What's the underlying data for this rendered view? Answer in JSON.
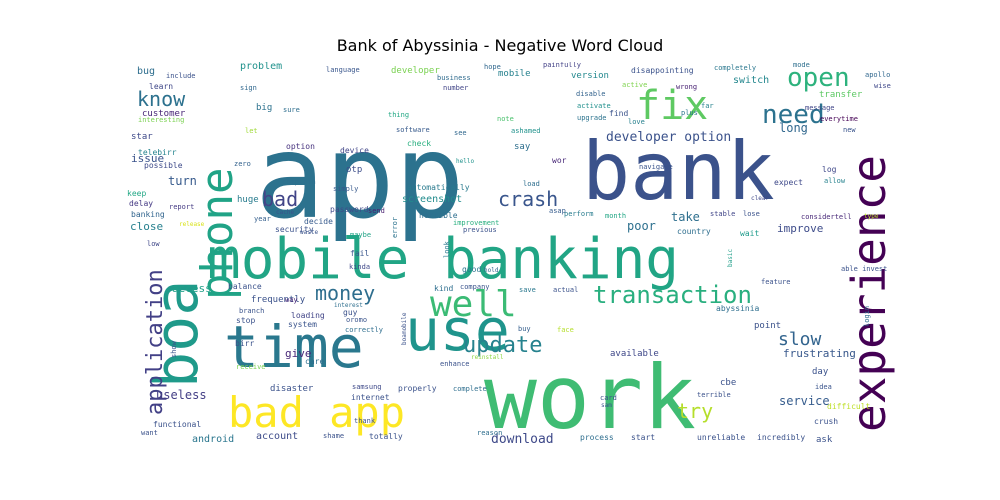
{
  "chart_data": {
    "type": "wordcloud",
    "title": "Bank of Abyssinia - Negative Word Cloud",
    "background": "#ffffff",
    "colormap": "viridis",
    "words": [
      {
        "text": "app",
        "size": 116,
        "color": "#2c728e"
      },
      {
        "text": "work",
        "size": 88,
        "color": "#3fbc73"
      },
      {
        "text": "bank",
        "size": 80,
        "color": "#3b528b"
      },
      {
        "text": "mobile banking",
        "size": 56,
        "color": "#21a585"
      },
      {
        "text": "time",
        "size": 58,
        "color": "#2a788e"
      },
      {
        "text": "use",
        "size": 58,
        "color": "#1f948c"
      },
      {
        "text": "boa",
        "size": 60,
        "color": "#1f9a8a"
      },
      {
        "text": "experience",
        "size": 46,
        "color": "#440154"
      },
      {
        "text": "phone",
        "size": 44,
        "color": "#20a386"
      },
      {
        "text": "bad app",
        "size": 42,
        "color": "#fde725"
      },
      {
        "text": "fix",
        "size": 40,
        "color": "#5ec962"
      },
      {
        "text": "well",
        "size": 36,
        "color": "#3bbb75"
      },
      {
        "text": "application",
        "size": 22,
        "color": "#424086"
      },
      {
        "text": "open",
        "size": 26,
        "color": "#2db27d"
      },
      {
        "text": "need",
        "size": 26,
        "color": "#2c728e"
      },
      {
        "text": "transaction",
        "size": 24,
        "color": "#29af7f"
      },
      {
        "text": "update",
        "size": 22,
        "color": "#26828e"
      },
      {
        "text": "money",
        "size": 20,
        "color": "#2e6e8e"
      },
      {
        "text": "crash",
        "size": 20,
        "color": "#39558c"
      },
      {
        "text": "know",
        "size": 20,
        "color": "#2c718e"
      },
      {
        "text": "bad",
        "size": 20,
        "color": "#414487"
      },
      {
        "text": "slow",
        "size": 18,
        "color": "#32648e"
      },
      {
        "text": "try",
        "size": 20,
        "color": "#b5de2b"
      },
      {
        "text": "developer option",
        "size": 13,
        "color": "#3b528b"
      },
      {
        "text": "download",
        "size": 13,
        "color": "#3e4989"
      },
      {
        "text": "service",
        "size": 12,
        "color": "#365c8d"
      },
      {
        "text": "useless",
        "size": 12,
        "color": "#433e85"
      },
      {
        "text": "long",
        "size": 12,
        "color": "#31688e"
      },
      {
        "text": "take",
        "size": 12,
        "color": "#2e6f8e"
      },
      {
        "text": "poor",
        "size": 12,
        "color": "#2d708e"
      },
      {
        "text": "turn",
        "size": 12,
        "color": "#375a8c"
      },
      {
        "text": "close",
        "size": 11,
        "color": "#27808e"
      },
      {
        "text": "issue",
        "size": 11,
        "color": "#3a538b"
      },
      {
        "text": "access",
        "size": 11,
        "color": "#1fa088"
      },
      {
        "text": "give",
        "size": 11,
        "color": "#482878"
      },
      {
        "text": "account",
        "size": 10,
        "color": "#3e4c8a"
      },
      {
        "text": "android",
        "size": 10,
        "color": "#2a768e"
      },
      {
        "text": "improve",
        "size": 11,
        "color": "#3e4c8a"
      },
      {
        "text": "frustrating",
        "size": 11,
        "color": "#38588c"
      },
      {
        "text": "screenshot",
        "size": 10,
        "color": "#228c8d"
      },
      {
        "text": "problem",
        "size": 10,
        "color": "#20928c"
      },
      {
        "text": "bug",
        "size": 10,
        "color": "#2e6e8e"
      },
      {
        "text": "developer",
        "size": 9,
        "color": "#7ad151"
      },
      {
        "text": "version",
        "size": 9,
        "color": "#23888e"
      },
      {
        "text": "switch",
        "size": 10,
        "color": "#24878e"
      },
      {
        "text": "transfer",
        "size": 9,
        "color": "#5cc863"
      },
      {
        "text": "mobile",
        "size": 9,
        "color": "#26818e"
      },
      {
        "text": "customer",
        "size": 9,
        "color": "#482677"
      },
      {
        "text": "learn",
        "size": 8,
        "color": "#3f4788"
      },
      {
        "text": "include",
        "size": 7,
        "color": "#3b528b"
      },
      {
        "text": "language",
        "size": 7,
        "color": "#39568c"
      },
      {
        "text": "business",
        "size": 7,
        "color": "#2f6b8e"
      },
      {
        "text": "number",
        "size": 7,
        "color": "#414487"
      },
      {
        "text": "hope",
        "size": 7,
        "color": "#31688e"
      },
      {
        "text": "painfully",
        "size": 7,
        "color": "#424186"
      },
      {
        "text": "disappointing",
        "size": 8,
        "color": "#3b528b"
      },
      {
        "text": "completely",
        "size": 7,
        "color": "#2a778e"
      },
      {
        "text": "mode",
        "size": 7,
        "color": "#2e6f8e"
      },
      {
        "text": "apollo",
        "size": 7,
        "color": "#31678e"
      },
      {
        "text": "wise",
        "size": 7,
        "color": "#3f4889"
      },
      {
        "text": "message",
        "size": 7,
        "color": "#404688"
      },
      {
        "text": "everytime",
        "size": 7,
        "color": "#440154"
      },
      {
        "text": "new",
        "size": 7,
        "color": "#3a548c"
      },
      {
        "text": "interesting",
        "size": 7,
        "color": "#7ad151"
      },
      {
        "text": "sign",
        "size": 7,
        "color": "#31688e"
      },
      {
        "text": "big",
        "size": 9,
        "color": "#2c728e"
      },
      {
        "text": "sure",
        "size": 7,
        "color": "#2e6e8e"
      },
      {
        "text": "thing",
        "size": 7,
        "color": "#22a884"
      },
      {
        "text": "star",
        "size": 9,
        "color": "#3e4989"
      },
      {
        "text": "let",
        "size": 7,
        "color": "#a0da39"
      },
      {
        "text": "option",
        "size": 8,
        "color": "#46327e"
      },
      {
        "text": "device",
        "size": 8,
        "color": "#404588"
      },
      {
        "text": "check",
        "size": 8,
        "color": "#29af7f"
      },
      {
        "text": "software",
        "size": 7,
        "color": "#375a8c"
      },
      {
        "text": "see",
        "size": 7,
        "color": "#31688e"
      },
      {
        "text": "note",
        "size": 7,
        "color": "#4ac16d"
      },
      {
        "text": "say",
        "size": 9,
        "color": "#2e6f8e"
      },
      {
        "text": "ashamed",
        "size": 7,
        "color": "#20928c"
      },
      {
        "text": "upgrade",
        "size": 7,
        "color": "#2c738e"
      },
      {
        "text": "activate",
        "size": 7,
        "color": "#21908d"
      },
      {
        "text": "disable",
        "size": 7,
        "color": "#33638d"
      },
      {
        "text": "active",
        "size": 7,
        "color": "#7fd34e"
      },
      {
        "text": "wrong",
        "size": 7,
        "color": "#482173"
      },
      {
        "text": "find",
        "size": 8,
        "color": "#3a538b"
      },
      {
        "text": "love",
        "size": 7,
        "color": "#27808e"
      },
      {
        "text": "plus",
        "size": 7,
        "color": "#2b748e"
      },
      {
        "text": "far",
        "size": 7,
        "color": "#26828e"
      },
      {
        "text": "navigate",
        "size": 7,
        "color": "#3a548c"
      },
      {
        "text": "telebirr",
        "size": 8,
        "color": "#25848e"
      },
      {
        "text": "possible",
        "size": 8,
        "color": "#3e4a89"
      },
      {
        "text": "zero",
        "size": 7,
        "color": "#33628d"
      },
      {
        "text": "otp",
        "size": 9,
        "color": "#3d4e8a"
      },
      {
        "text": "hello",
        "size": 6,
        "color": "#20928c"
      },
      {
        "text": "wor",
        "size": 8,
        "color": "#482878"
      },
      {
        "text": "load",
        "size": 7,
        "color": "#2e6e8e"
      },
      {
        "text": "expect",
        "size": 8,
        "color": "#3e4989"
      },
      {
        "text": "log",
        "size": 8,
        "color": "#3f4889"
      },
      {
        "text": "allow",
        "size": 7,
        "color": "#26828e"
      },
      {
        "text": "keep",
        "size": 8,
        "color": "#22a785"
      },
      {
        "text": "delay",
        "size": 8,
        "color": "#443983"
      },
      {
        "text": "report",
        "size": 7,
        "color": "#443a83"
      },
      {
        "text": "banking",
        "size": 8,
        "color": "#32658e"
      },
      {
        "text": "complain",
        "size": 7,
        "color": "#2d708e"
      },
      {
        "text": "simply",
        "size": 7,
        "color": "#38598c"
      },
      {
        "text": "automatically",
        "size": 8,
        "color": "#297a8e"
      },
      {
        "text": "huge",
        "size": 9,
        "color": "#287c8e"
      },
      {
        "text": "release",
        "size": 6,
        "color": "#d8e219"
      },
      {
        "text": "cache",
        "size": 6,
        "color": "#3a548c"
      },
      {
        "text": "year",
        "size": 7,
        "color": "#355f8d"
      },
      {
        "text": "decide",
        "size": 8,
        "color": "#375b8d"
      },
      {
        "text": "password",
        "size": 8,
        "color": "#3e4a89"
      },
      {
        "text": "send",
        "size": 7,
        "color": "#481f70"
      },
      {
        "text": "horrible",
        "size": 8,
        "color": "#2e6f8e"
      },
      {
        "text": "asap",
        "size": 7,
        "color": "#365c8d"
      },
      {
        "text": "perform",
        "size": 7,
        "color": "#287c8e"
      },
      {
        "text": "month",
        "size": 7,
        "color": "#22a785"
      },
      {
        "text": "stable",
        "size": 7,
        "color": "#404588"
      },
      {
        "text": "lose",
        "size": 7,
        "color": "#3b528b"
      },
      {
        "text": "clear",
        "size": 6,
        "color": "#3f4889"
      },
      {
        "text": "considertell",
        "size": 7,
        "color": "#482878"
      },
      {
        "text": "type",
        "size": 6,
        "color": "#b8de29"
      },
      {
        "text": "security",
        "size": 8,
        "color": "#3b528b"
      },
      {
        "text": "waste",
        "size": 6,
        "color": "#3a538b"
      },
      {
        "text": "maybe",
        "size": 7,
        "color": "#20a386"
      },
      {
        "text": "error",
        "size": 7,
        "color": "#2c738e"
      },
      {
        "text": "improvement",
        "size": 7,
        "color": "#29af7f"
      },
      {
        "text": "previous",
        "size": 7,
        "color": "#3b528b"
      },
      {
        "text": "country",
        "size": 8,
        "color": "#2e6e8e"
      },
      {
        "text": "wait",
        "size": 8,
        "color": "#1e9b8a"
      },
      {
        "text": "low",
        "size": 7,
        "color": "#3f4788"
      },
      {
        "text": "look",
        "size": 7,
        "color": "#2a788e"
      },
      {
        "text": "fail",
        "size": 8,
        "color": "#39568c"
      },
      {
        "text": "kinda",
        "size": 7,
        "color": "#3f4889"
      },
      {
        "text": "able invest",
        "size": 7,
        "color": "#3b528b"
      },
      {
        "text": "basic",
        "size": 6,
        "color": "#1f9e89"
      },
      {
        "text": "good",
        "size": 8,
        "color": "#2a768e"
      },
      {
        "text": "hold",
        "size": 6,
        "color": "#32658e"
      },
      {
        "text": "balance",
        "size": 8,
        "color": "#3b528b"
      },
      {
        "text": "interest",
        "size": 6,
        "color": "#2e6f8e"
      },
      {
        "text": "company",
        "size": 7,
        "color": "#3a548c"
      },
      {
        "text": "kind",
        "size": 8,
        "color": "#2e6e8e"
      },
      {
        "text": "save",
        "size": 7,
        "color": "#2a788e"
      },
      {
        "text": "actual",
        "size": 7,
        "color": "#3b528b"
      },
      {
        "text": "feature",
        "size": 7,
        "color": "#3b528b"
      },
      {
        "text": "abyssinia",
        "size": 8,
        "color": "#2e6e8e"
      },
      {
        "text": "frequently",
        "size": 9,
        "color": "#3b528b"
      },
      {
        "text": "way",
        "size": 7,
        "color": "#482878"
      },
      {
        "text": "branch",
        "size": 7,
        "color": "#3a538b"
      },
      {
        "text": "guy",
        "size": 8,
        "color": "#3b528b"
      },
      {
        "text": "oromo",
        "size": 7,
        "color": "#3a548c"
      },
      {
        "text": "correctly",
        "size": 7,
        "color": "#2e6e8e"
      },
      {
        "text": "buy",
        "size": 7,
        "color": "#355f8d"
      },
      {
        "text": "face",
        "size": 7,
        "color": "#b5de2b"
      },
      {
        "text": "stop",
        "size": 8,
        "color": "#3b528b"
      },
      {
        "text": "loading",
        "size": 8,
        "color": "#414487"
      },
      {
        "text": "system",
        "size": 8,
        "color": "#3a548c"
      },
      {
        "text": "login",
        "size": 7,
        "color": "#2e6e8e"
      },
      {
        "text": "point",
        "size": 9,
        "color": "#3b528b"
      },
      {
        "text": "birr",
        "size": 8,
        "color": "#3b528b"
      },
      {
        "text": "care",
        "size": 8,
        "color": "#2e6e8e"
      },
      {
        "text": "boamobile",
        "size": 6,
        "color": "#3b528b"
      },
      {
        "text": "enhance",
        "size": 7,
        "color": "#3b528b"
      },
      {
        "text": "reinstall",
        "size": 6,
        "color": "#8fd744"
      },
      {
        "text": "available",
        "size": 9,
        "color": "#3f4889"
      },
      {
        "text": "receive",
        "size": 7,
        "color": "#7ad151"
      },
      {
        "text": "show",
        "size": 7,
        "color": "#3a548c"
      },
      {
        "text": "day",
        "size": 9,
        "color": "#3b528b"
      },
      {
        "text": "disaster",
        "size": 9,
        "color": "#3b528b"
      },
      {
        "text": "samsung",
        "size": 7,
        "color": "#3e4989"
      },
      {
        "text": "properly",
        "size": 8,
        "color": "#3b528b"
      },
      {
        "text": "complete",
        "size": 7,
        "color": "#2e6e8e"
      },
      {
        "text": "cbe",
        "size": 9,
        "color": "#3b528b"
      },
      {
        "text": "idea",
        "size": 7,
        "color": "#3a548c"
      },
      {
        "text": "internet",
        "size": 8,
        "color": "#3b528b"
      },
      {
        "text": "terrible",
        "size": 7,
        "color": "#3b528b"
      },
      {
        "text": "card",
        "size": 7,
        "color": "#3b528b"
      },
      {
        "text": "sam",
        "size": 6,
        "color": "#3a548c"
      },
      {
        "text": "difficult",
        "size": 8,
        "color": "#bddf26"
      },
      {
        "text": "functional",
        "size": 8,
        "color": "#3b528b"
      },
      {
        "text": "thank",
        "size": 7,
        "color": "#3b528b"
      },
      {
        "text": "reason",
        "size": 7,
        "color": "#2e6e8e"
      },
      {
        "text": "crush",
        "size": 8,
        "color": "#3b528b"
      },
      {
        "text": "want",
        "size": 7,
        "color": "#3b528b"
      },
      {
        "text": "shame",
        "size": 7,
        "color": "#3b528b"
      },
      {
        "text": "totally",
        "size": 8,
        "color": "#3b528b"
      },
      {
        "text": "process",
        "size": 8,
        "color": "#2e6e8e"
      },
      {
        "text": "start",
        "size": 8,
        "color": "#3b528b"
      },
      {
        "text": "unreliable",
        "size": 8,
        "color": "#3b528b"
      },
      {
        "text": "incredibly",
        "size": 8,
        "color": "#3b528b"
      },
      {
        "text": "ask",
        "size": 9,
        "color": "#3b528b"
      }
    ]
  }
}
